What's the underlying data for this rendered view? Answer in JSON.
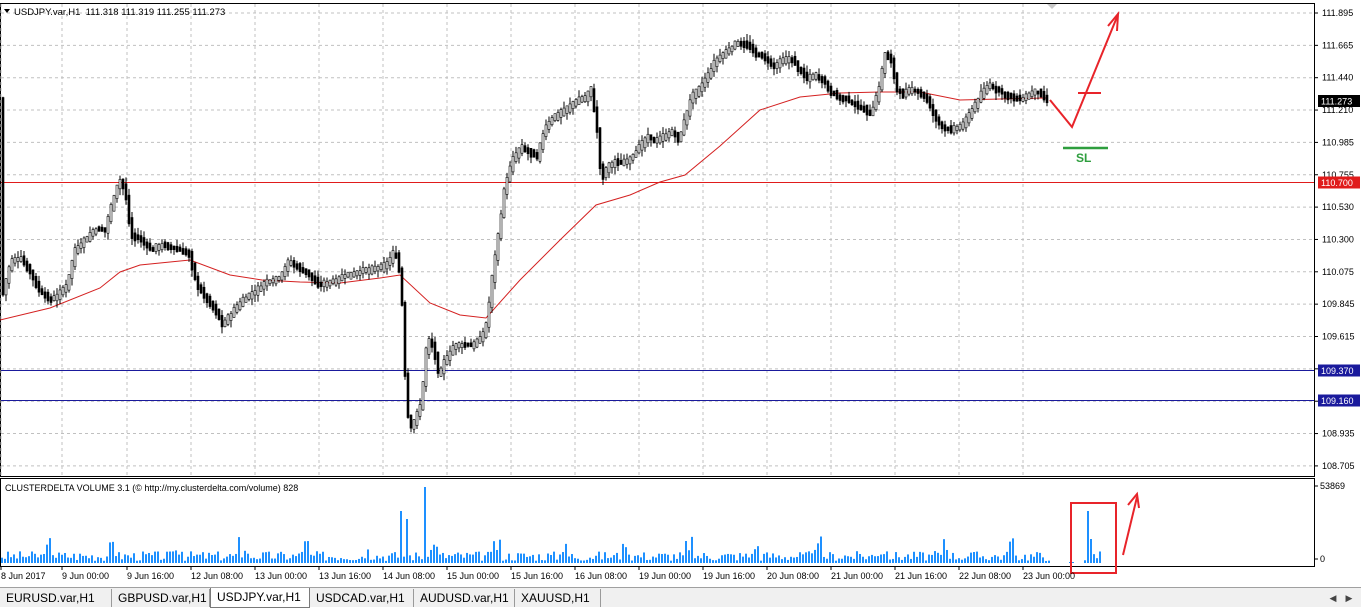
{
  "window": {
    "header": "USDJPY.var,H1  111.318 111.319 111.255 111.273"
  },
  "main_chart": {
    "symbol": "USDJPY.var,H1",
    "ohlc": "111.318 111.319 111.255 111.273",
    "price_axis": [
      "111.895",
      "111.665",
      "111.440",
      "111.210",
      "110.985",
      "110.755",
      "110.530",
      "110.300",
      "110.075",
      "109.845",
      "109.615",
      "109.385",
      "109.160",
      "108.935",
      "108.705"
    ],
    "current_price": "111.273",
    "levels": [
      {
        "price": "110.700",
        "color": "#e01b1b"
      },
      {
        "price": "109.370",
        "color": "#1a1a9c"
      },
      {
        "price": "109.160",
        "color": "#1a1a9c"
      }
    ],
    "annotation_sl": "SL",
    "colors": {
      "up": "#000000",
      "ma": "#d42121",
      "arrow": "#e8242a",
      "sl": "#2e9e3e"
    }
  },
  "indicator": {
    "label": "CLUSTERDELTA VOLUME 3.1 (© http://my.clusterdelta.com/volume) 828",
    "scale_top": "53869",
    "scale_bottom": "0",
    "bar_color": "#1e90ff"
  },
  "time_axis": [
    "8 Jun 2017",
    "9 Jun 00:00",
    "9 Jun 16:00",
    "12 Jun 08:00",
    "13 Jun 00:00",
    "13 Jun 16:00",
    "14 Jun 08:00",
    "15 Jun 00:00",
    "15 Jun 16:00",
    "16 Jun 08:00",
    "19 Jun 00:00",
    "19 Jun 16:00",
    "20 Jun 08:00",
    "21 Jun 00:00",
    "21 Jun 16:00",
    "22 Jun 08:00",
    "23 Jun 00:00"
  ],
  "tabs": [
    {
      "label": "EURUSD.var,H1",
      "active": false
    },
    {
      "label": "GBPUSD.var,H1",
      "active": false
    },
    {
      "label": "USDJPY.var,H1",
      "active": true
    },
    {
      "label": "USDCAD.var,H1",
      "active": false
    },
    {
      "label": "AUDUSD.var,H1",
      "active": false
    },
    {
      "label": "XAUUSD,H1",
      "active": false
    }
  ]
}
